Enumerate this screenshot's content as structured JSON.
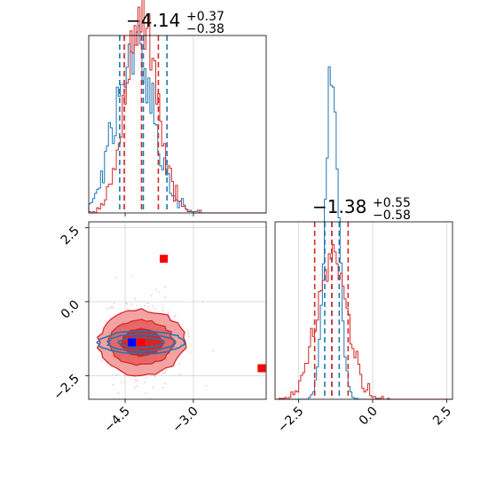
{
  "colors": {
    "series_a": "#1f77b4",
    "series_b": "#d62728",
    "marker_a": "#0000ff",
    "marker_b": "#ff0000",
    "grid": "#d3d3d3"
  },
  "chart_data": [
    {
      "type": "histogram",
      "panel": "param1-marginal",
      "title": {
        "main": "−4.14",
        "sup": "+0.37",
        "sub": "−0.38"
      },
      "xlim": [
        -5.3,
        -1.4
      ],
      "grid": true,
      "series": [
        {
          "color_key": "series_a",
          "quantiles": [
            -4.62,
            -4.1,
            -3.58
          ]
        },
        {
          "color_key": "series_b",
          "quantiles": [
            -4.52,
            -4.14,
            -3.77
          ]
        }
      ]
    },
    {
      "type": "histogram",
      "panel": "param2-marginal",
      "title": {
        "main": "−1.38",
        "sup": "+0.55",
        "sub": "−0.58"
      },
      "xlim": [
        -3.3,
        2.7
      ],
      "xticks": [
        "−2.5",
        "0.0",
        "2.5"
      ],
      "grid": true,
      "series": [
        {
          "color_key": "series_a",
          "quantiles": [
            -1.62,
            -1.38,
            -1.13
          ]
        },
        {
          "color_key": "series_b",
          "quantiles": [
            -1.96,
            -1.38,
            -0.83
          ]
        }
      ]
    },
    {
      "type": "contour",
      "panel": "param1-vs-param2",
      "xlim": [
        -5.3,
        -1.4
      ],
      "ylim": [
        -3.3,
        2.7
      ],
      "xticks": [
        "−4.5",
        "−3.0"
      ],
      "yticks": [
        "2.5",
        "0.0",
        "−2.5"
      ],
      "grid": true,
      "center": {
        "x": -4.14,
        "y": -1.38
      },
      "series": [
        {
          "color_key": "series_a",
          "marker_color_key": "marker_a",
          "marker": {
            "x": -4.35,
            "y": -1.38
          }
        },
        {
          "color_key": "series_b",
          "marker_color_key": "marker_b",
          "markers": [
            {
              "x": -4.15,
              "y": -1.38
            },
            {
              "x": -3.65,
              "y": 1.45
            },
            {
              "x": -1.5,
              "y": -2.25
            }
          ]
        }
      ]
    }
  ]
}
